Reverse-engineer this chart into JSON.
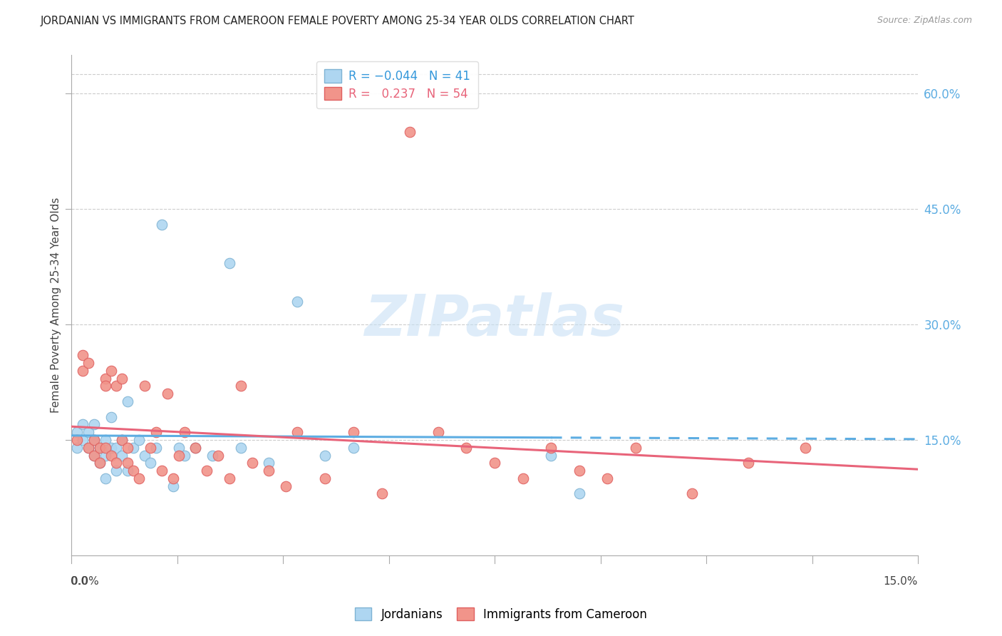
{
  "title": "JORDANIAN VS IMMIGRANTS FROM CAMEROON FEMALE POVERTY AMONG 25-34 YEAR OLDS CORRELATION CHART",
  "source": "Source: ZipAtlas.com",
  "ylabel": "Female Poverty Among 25-34 Year Olds",
  "xlim": [
    0.0,
    0.15
  ],
  "ylim": [
    0.0,
    0.65
  ],
  "right_ytick_vals": [
    0.15,
    0.3,
    0.45,
    0.6
  ],
  "right_ytick_labels": [
    "15.0%",
    "30.0%",
    "45.0%",
    "60.0%"
  ],
  "color_jordan_fill": "#AED6F1",
  "color_jordan_edge": "#7FB3D3",
  "color_jordan_line": "#5DADE2",
  "color_cameron_fill": "#F1948A",
  "color_cameron_edge": "#E06060",
  "color_cameron_line": "#E8647A",
  "grid_color": "#CCCCCC",
  "watermark_color": "#D6EAF8",
  "jordanians_x": [
    0.001,
    0.001,
    0.002,
    0.002,
    0.003,
    0.003,
    0.004,
    0.004,
    0.004,
    0.005,
    0.005,
    0.006,
    0.006,
    0.006,
    0.007,
    0.007,
    0.008,
    0.008,
    0.009,
    0.009,
    0.01,
    0.01,
    0.011,
    0.012,
    0.013,
    0.014,
    0.015,
    0.016,
    0.018,
    0.019,
    0.02,
    0.022,
    0.025,
    0.028,
    0.03,
    0.035,
    0.04,
    0.045,
    0.05,
    0.085,
    0.09
  ],
  "jordanians_y": [
    0.14,
    0.16,
    0.15,
    0.17,
    0.14,
    0.16,
    0.13,
    0.15,
    0.17,
    0.12,
    0.14,
    0.1,
    0.13,
    0.15,
    0.14,
    0.18,
    0.11,
    0.14,
    0.13,
    0.15,
    0.11,
    0.2,
    0.14,
    0.15,
    0.13,
    0.12,
    0.14,
    0.43,
    0.09,
    0.14,
    0.13,
    0.14,
    0.13,
    0.38,
    0.14,
    0.12,
    0.33,
    0.13,
    0.14,
    0.13,
    0.08
  ],
  "cameroon_x": [
    0.001,
    0.002,
    0.002,
    0.003,
    0.003,
    0.004,
    0.004,
    0.005,
    0.005,
    0.006,
    0.006,
    0.006,
    0.007,
    0.007,
    0.008,
    0.008,
    0.009,
    0.009,
    0.01,
    0.01,
    0.011,
    0.012,
    0.013,
    0.014,
    0.015,
    0.016,
    0.017,
    0.018,
    0.019,
    0.02,
    0.022,
    0.024,
    0.026,
    0.028,
    0.03,
    0.032,
    0.035,
    0.038,
    0.04,
    0.045,
    0.05,
    0.055,
    0.06,
    0.065,
    0.07,
    0.075,
    0.08,
    0.085,
    0.09,
    0.095,
    0.1,
    0.11,
    0.12,
    0.13
  ],
  "cameroon_y": [
    0.15,
    0.26,
    0.24,
    0.14,
    0.25,
    0.13,
    0.15,
    0.12,
    0.14,
    0.23,
    0.22,
    0.14,
    0.24,
    0.13,
    0.12,
    0.22,
    0.23,
    0.15,
    0.14,
    0.12,
    0.11,
    0.1,
    0.22,
    0.14,
    0.16,
    0.11,
    0.21,
    0.1,
    0.13,
    0.16,
    0.14,
    0.11,
    0.13,
    0.1,
    0.22,
    0.12,
    0.11,
    0.09,
    0.16,
    0.1,
    0.16,
    0.08,
    0.55,
    0.16,
    0.14,
    0.12,
    0.1,
    0.14,
    0.11,
    0.1,
    0.14,
    0.08,
    0.12,
    0.14
  ],
  "jordan_line_solid_end": 0.085,
  "jordan_line_dash_start": 0.085
}
